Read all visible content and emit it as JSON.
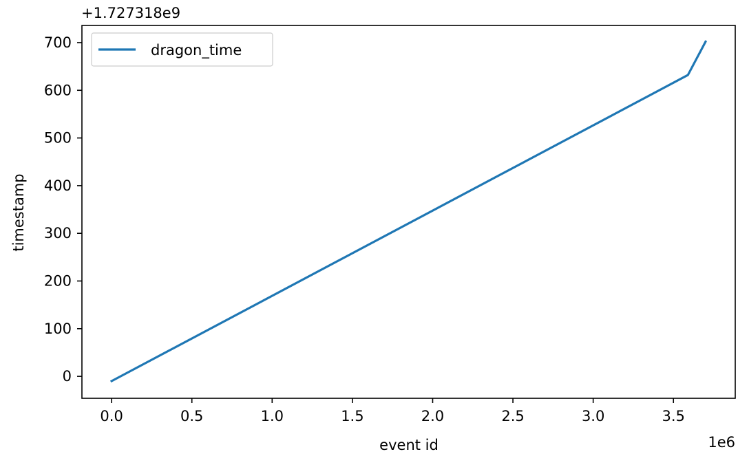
{
  "chart_data": {
    "type": "line",
    "title": "",
    "xlabel": "event id",
    "ylabel": "timestamp",
    "x_offset_text": "1e6",
    "y_offset_text": "+1.727318e9",
    "xlim": [
      -0.185,
      3.885
    ],
    "ylim": [
      -46,
      736
    ],
    "x_ticks": [
      0.0,
      0.5,
      1.0,
      1.5,
      2.0,
      2.5,
      3.0,
      3.5
    ],
    "x_tick_labels": [
      "0.0",
      "0.5",
      "1.0",
      "1.5",
      "2.0",
      "2.5",
      "3.0",
      "3.5"
    ],
    "y_ticks": [
      0,
      100,
      200,
      300,
      400,
      500,
      600,
      700
    ],
    "y_tick_labels": [
      "0",
      "100",
      "200",
      "300",
      "400",
      "500",
      "600",
      "700"
    ],
    "grid": false,
    "legend_position": "upper-left",
    "series": [
      {
        "name": "dragon_time",
        "color": "#1f77b4",
        "x": [
          0.0,
          3.59,
          3.7
        ],
        "y": [
          -10,
          632,
          702
        ]
      }
    ]
  }
}
